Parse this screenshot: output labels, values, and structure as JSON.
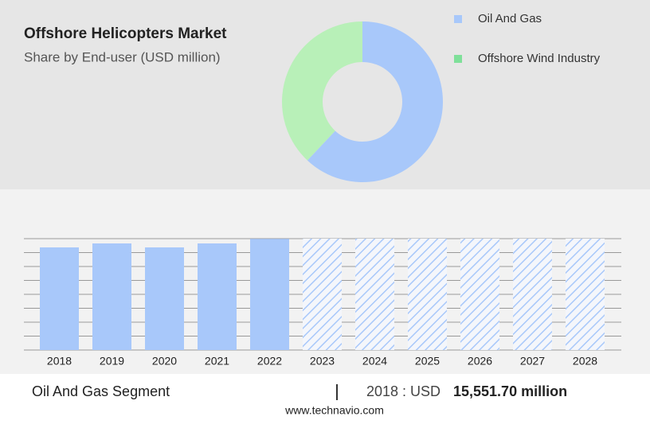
{
  "title": "Offshore Helicopters Market",
  "subtitle": "Share by End-user (USD million)",
  "chart_data": [
    {
      "type": "pie",
      "categories": [
        "Oil And Gas",
        "Offshore Wind Industry"
      ],
      "values": [
        62,
        38
      ],
      "colors": [
        "#a8c8fa",
        "#b8f0b8"
      ],
      "legend_colors": [
        "#a8c8fa",
        "#7fe09a"
      ]
    },
    {
      "type": "bar",
      "categories": [
        "2018",
        "2019",
        "2020",
        "2021",
        "2022",
        "2023",
        "2024",
        "2025",
        "2026",
        "2027",
        "2028"
      ],
      "values": [
        15551.7,
        16157,
        15551.7,
        16157,
        16850,
        null,
        null,
        null,
        null,
        null,
        null
      ],
      "color": "#a8c8fa",
      "ylim": [
        0,
        16880
      ],
      "yticks": [
        0,
        2110,
        4220,
        6330,
        8440,
        10550,
        12660,
        14770,
        16880
      ],
      "grid": true
    }
  ],
  "footer": {
    "segment": "Oil And Gas Segment",
    "year_label": "2018 : USD",
    "value": "15,551.70 million",
    "source": "www.technavio.com"
  }
}
